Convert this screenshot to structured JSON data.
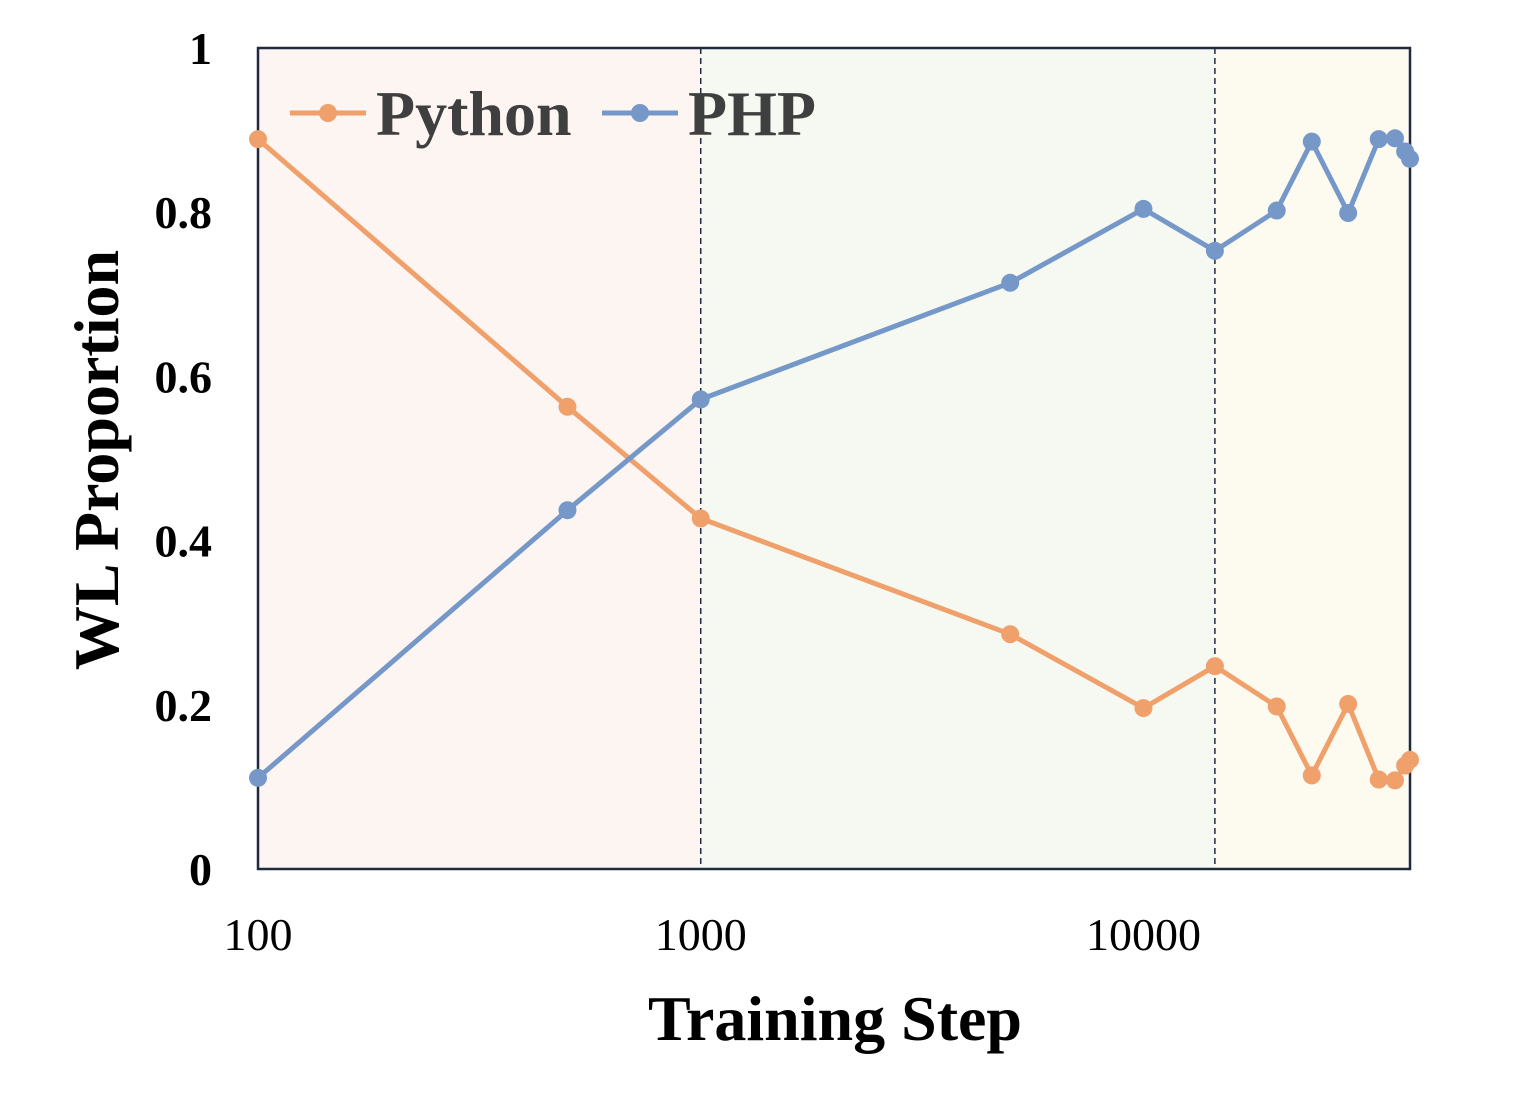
{
  "chart_data": {
    "type": "line",
    "xlabel": "Training Step",
    "ylabel": "WL Proportion",
    "x_scale": "log",
    "xlim": [
      100,
      40000
    ],
    "ylim": [
      0,
      1
    ],
    "x_ticks": [
      "100",
      "1000",
      "10000"
    ],
    "x_tick_values": [
      100,
      1000,
      10000
    ],
    "y_ticks": [
      "0",
      "0.2",
      "0.4",
      "0.6",
      "0.8",
      "1"
    ],
    "y_tick_values": [
      0,
      0.2,
      0.4,
      0.6,
      0.8,
      1
    ],
    "legend_position": "top-left",
    "grid": false,
    "regions": [
      {
        "from": 100,
        "to": 1000,
        "color": "#fdf5f2"
      },
      {
        "from": 1000,
        "to": 14500,
        "color": "#f5f9f2"
      },
      {
        "from": 14500,
        "to": 40000,
        "color": "#fdfaf0"
      }
    ],
    "x": [
      100,
      500,
      1000,
      5000,
      10000,
      14500,
      20000,
      24000,
      29000,
      34000,
      37000,
      39000,
      40000
    ],
    "series": [
      {
        "name": "Python",
        "color": "#f0a06a",
        "values": [
          0.889,
          0.563,
          0.427,
          0.286,
          0.196,
          0.247,
          0.198,
          0.114,
          0.201,
          0.109,
          0.108,
          0.126,
          0.133
        ]
      },
      {
        "name": "PHP",
        "color": "#7698c9",
        "values": [
          0.111,
          0.437,
          0.572,
          0.714,
          0.804,
          0.753,
          0.802,
          0.886,
          0.799,
          0.889,
          0.89,
          0.874,
          0.865
        ]
      }
    ]
  }
}
